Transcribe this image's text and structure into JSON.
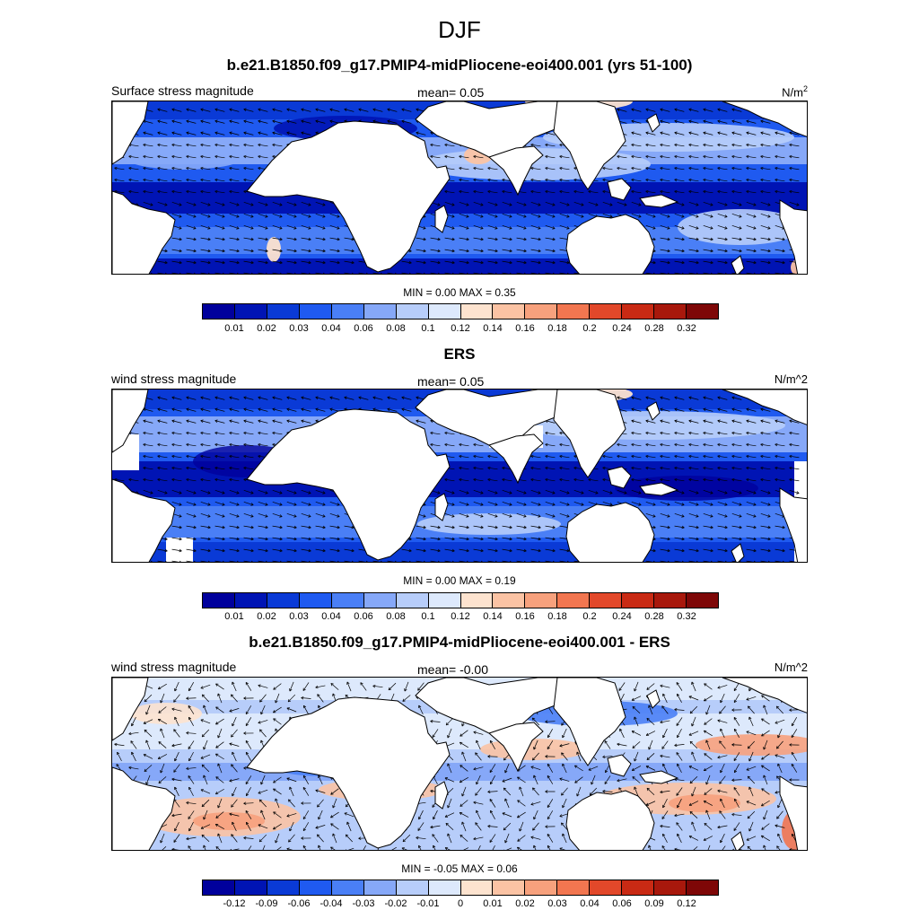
{
  "figure": {
    "season": "DJF"
  },
  "panels": [
    {
      "title": "b.e21.B1850.f09_g17.PMIP4-midPliocene-eoi400.001 (yrs 51-100)",
      "left_label": "Surface stress magnitude",
      "mean_label": "mean=   0.05",
      "units_label": "N/m",
      "units_sup": "2",
      "minmax": "MIN =   0.00 MAX =   0.35",
      "colorbar_ticks": [
        "0.01",
        "0.02",
        "0.03",
        "0.04",
        "0.06",
        "0.08",
        "0.1",
        "0.12",
        "0.14",
        "0.16",
        "0.18",
        "0.2",
        "0.24",
        "0.28",
        "0.32"
      ]
    },
    {
      "title": "ERS",
      "left_label": "wind stress magnitude",
      "mean_label": "mean=   0.05",
      "units_label": "N/m^2",
      "minmax": "MIN =   0.00 MAX =   0.19",
      "colorbar_ticks": [
        "0.01",
        "0.02",
        "0.03",
        "0.04",
        "0.06",
        "0.08",
        "0.1",
        "0.12",
        "0.14",
        "0.16",
        "0.18",
        "0.2",
        "0.24",
        "0.28",
        "0.32"
      ]
    },
    {
      "title": "b.e21.B1850.f09_g17.PMIP4-midPliocene-eoi400.001 - ERS",
      "left_label": "wind stress magnitude",
      "mean_label": "mean=  -0.00",
      "units_label": "N/m^2",
      "minmax": "MIN =  -0.05 MAX =   0.06",
      "colorbar_ticks": [
        "-0.12",
        "-0.09",
        "-0.06",
        "-0.04",
        "-0.03",
        "-0.02",
        "-0.01",
        "0",
        "0.01",
        "0.02",
        "0.03",
        "0.04",
        "0.06",
        "0.09",
        "0.12"
      ]
    }
  ],
  "colors": {
    "palette": [
      "#00009c",
      "#0014b4",
      "#0a3ad6",
      "#1f5af0",
      "#4a7ff6",
      "#86a8f8",
      "#b7cdfa",
      "#dde9fc",
      "#fde3cf",
      "#fbc3a4",
      "#f7a17d",
      "#f27650",
      "#e2482a",
      "#c92a14",
      "#a8180c",
      "#7e0707"
    ],
    "land": "#ffffff",
    "coast": "#000000"
  }
}
